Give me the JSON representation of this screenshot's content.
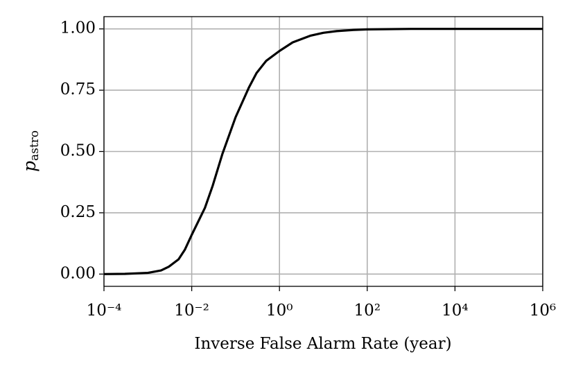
{
  "chart_data": {
    "type": "line",
    "xlabel": "Inverse False Alarm Rate (year)",
    "ylabel": {
      "text": "p",
      "subscript": "astro"
    },
    "xscale": "log",
    "grid": true,
    "xlim": [
      0.0001,
      1000000
    ],
    "ylim": [
      -0.05,
      1.05
    ],
    "xticks": [
      {
        "value": 0.0001,
        "label": "10⁻⁴"
      },
      {
        "value": 0.01,
        "label": "10⁻²"
      },
      {
        "value": 1,
        "label": "10⁰"
      },
      {
        "value": 100,
        "label": "10²"
      },
      {
        "value": 10000,
        "label": "10⁴"
      },
      {
        "value": 1000000,
        "label": "10⁶"
      }
    ],
    "yticks": [
      {
        "value": 0,
        "label": "0.00"
      },
      {
        "value": 0.25,
        "label": "0.25"
      },
      {
        "value": 0.5,
        "label": "0.50"
      },
      {
        "value": 0.75,
        "label": "0.75"
      },
      {
        "value": 1,
        "label": "1.00"
      }
    ],
    "x": [
      0.0001,
      0.0003,
      0.001,
      0.002,
      0.003,
      0.005,
      0.007,
      0.01,
      0.02,
      0.03,
      0.05,
      0.1,
      0.2,
      0.3,
      0.5,
      1,
      2,
      5,
      10,
      20,
      50,
      100,
      1000,
      10000,
      100000,
      1000000
    ],
    "series": [
      {
        "color": "#000000",
        "values": [
          0.0,
          0.001,
          0.005,
          0.015,
          0.03,
          0.06,
          0.1,
          0.16,
          0.27,
          0.36,
          0.49,
          0.64,
          0.76,
          0.82,
          0.87,
          0.91,
          0.945,
          0.972,
          0.984,
          0.991,
          0.996,
          0.998,
          1.0,
          1.0,
          1.0,
          1.0
        ]
      }
    ]
  }
}
